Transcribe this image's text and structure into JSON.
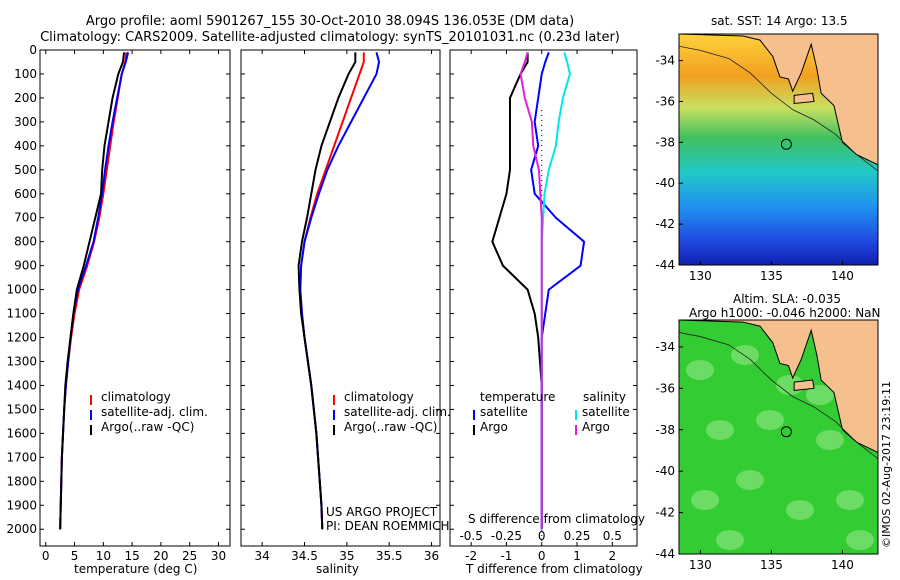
{
  "header": {
    "title1": "Argo profile: aoml 5901267_155 30-Oct-2010 38.094S 136.053E (DM data)",
    "title2": "Climatology: CARS2009. Satellite-adjusted climatology: synTS_20101031.nc (0.23d later)"
  },
  "colors": {
    "climatology": "#ff0000",
    "satellite": "#0000ff",
    "argo": "#000000",
    "sat_salinity": "#00e5ee",
    "argo_salinity": "#e020e0",
    "land": "#f5c08e"
  },
  "panels": {
    "temperature": {
      "xlabel": "temperature (deg C)",
      "legend": [
        "climatology",
        "satellite-adj. clim.",
        "Argo(..raw -QC)"
      ]
    },
    "salinity": {
      "xlabel": "salinity",
      "legend": [
        "climatology",
        "satellite-adj. clim.",
        "Argo(..raw -QC)"
      ],
      "note1": "US ARGO PROJECT",
      "note2": "PI: DEAN ROEMMICH"
    },
    "difference": {
      "xlabel": "T difference from climatology",
      "top_axis_label": "S difference from climatology",
      "legend_temp_title": "temperature",
      "legend_sal_title": "salinity",
      "legend_items": [
        "satellite",
        "Argo",
        "satellite",
        "Argo"
      ]
    },
    "map_sst": {
      "title": "sat. SST: 14 Argo: 13.5"
    },
    "map_sla": {
      "title1": "Altim. SLA: -0.035",
      "title2": "Argo h1000: -0.046 h2000: NaN"
    }
  },
  "watermark": "©IMOS 02-Aug-2017 23:19:11",
  "chart_data": [
    {
      "type": "line",
      "title": "",
      "xlabel": "temperature (deg C)",
      "ylabel": "",
      "xlim": [
        -1,
        32
      ],
      "ylim": [
        2070,
        0
      ],
      "xticks": [
        0,
        5,
        10,
        15,
        20,
        25,
        30
      ],
      "yticks": [
        0,
        100,
        200,
        300,
        400,
        500,
        600,
        700,
        800,
        900,
        1000,
        1100,
        1200,
        1300,
        1400,
        1500,
        1600,
        1700,
        1800,
        1900,
        2000
      ],
      "series": [
        {
          "name": "climatology",
          "x": [
            14,
            13.8,
            13.2,
            12.5,
            11.8,
            11.2,
            10.6,
            10,
            9.3,
            8.4,
            7.2,
            5.8,
            5,
            4.4,
            3.9,
            3.5,
            3.2,
            3,
            2.8,
            2.7,
            2.6,
            2.5
          ],
          "y": [
            10,
            50,
            100,
            200,
            300,
            400,
            500,
            600,
            700,
            800,
            900,
            1000,
            1100,
            1200,
            1300,
            1400,
            1500,
            1600,
            1700,
            1800,
            1900,
            2000
          ]
        },
        {
          "name": "satellite-adj. clim.",
          "x": [
            14.3,
            13.9,
            13.2,
            12.4,
            11.6,
            10.9,
            10.3,
            9.8,
            9.1,
            8.3,
            7,
            5.6,
            4.8,
            4.3,
            3.9,
            3.5,
            3.2,
            3,
            2.8,
            2.7,
            2.6,
            2.5
          ],
          "y": [
            10,
            50,
            100,
            200,
            300,
            400,
            500,
            600,
            700,
            800,
            900,
            1000,
            1100,
            1200,
            1300,
            1400,
            1500,
            1600,
            1700,
            1800,
            1900,
            2000
          ]
        },
        {
          "name": "Argo(..raw -QC)",
          "x": [
            13.6,
            13.4,
            12.6,
            11.6,
            10.9,
            10.2,
            9.8,
            9.6,
            8.6,
            7.6,
            6.6,
            5.4,
            4.8,
            4.3,
            3.8,
            3.4,
            3.2,
            3,
            2.8,
            2.7,
            2.6,
            2.5
          ],
          "y": [
            10,
            50,
            100,
            200,
            300,
            400,
            500,
            600,
            700,
            800,
            900,
            1000,
            1100,
            1200,
            1300,
            1400,
            1500,
            1600,
            1700,
            1800,
            1900,
            2000
          ]
        }
      ],
      "legend": "inside lower-center"
    },
    {
      "type": "line",
      "title": "",
      "xlabel": "salinity",
      "ylabel": "",
      "xlim": [
        33.75,
        36.1
      ],
      "ylim": [
        2070,
        0
      ],
      "xticks": [
        34,
        34.5,
        35,
        35.5,
        36
      ],
      "series": [
        {
          "name": "climatology",
          "x": [
            35.2,
            35.2,
            35.15,
            35.05,
            34.95,
            34.85,
            34.75,
            34.65,
            34.57,
            34.5,
            34.46,
            34.45,
            34.47,
            34.5,
            34.54,
            34.58,
            34.61,
            34.64,
            34.66,
            34.68,
            34.7,
            34.71
          ],
          "y": [
            10,
            50,
            100,
            200,
            300,
            400,
            500,
            600,
            700,
            800,
            900,
            1000,
            1100,
            1200,
            1300,
            1400,
            1500,
            1600,
            1700,
            1800,
            1900,
            2000
          ]
        },
        {
          "name": "satellite-adj. clim.",
          "x": [
            35.35,
            35.38,
            35.35,
            35.2,
            35.05,
            34.9,
            34.77,
            34.67,
            34.58,
            34.5,
            34.46,
            34.45,
            34.47,
            34.5,
            34.54,
            34.58,
            34.61,
            34.64,
            34.66,
            34.68,
            34.7,
            34.71
          ],
          "y": [
            10,
            50,
            100,
            200,
            300,
            400,
            500,
            600,
            700,
            800,
            900,
            1000,
            1100,
            1200,
            1300,
            1400,
            1500,
            1600,
            1700,
            1800,
            1900,
            2000
          ]
        },
        {
          "name": "Argo(..raw -QC)",
          "x": [
            35.1,
            35.1,
            35.02,
            34.9,
            34.8,
            34.7,
            34.63,
            34.58,
            34.53,
            34.47,
            34.43,
            34.44,
            34.46,
            34.5,
            34.54,
            34.58,
            34.61,
            34.64,
            34.66,
            34.68,
            34.7,
            34.71
          ],
          "y": [
            10,
            50,
            100,
            200,
            300,
            400,
            500,
            600,
            700,
            800,
            900,
            1000,
            1100,
            1200,
            1300,
            1400,
            1500,
            1600,
            1700,
            1800,
            1900,
            2000
          ]
        }
      ],
      "legend": "inside lower-center"
    },
    {
      "type": "line",
      "title": "",
      "xlabel": "T difference from climatology",
      "ylabel": "",
      "xlim": [
        -2.6,
        2.7
      ],
      "ylim": [
        2070,
        0
      ],
      "xticks": [
        -2,
        -1,
        0,
        1,
        2
      ],
      "top_xlabel": "S difference from climatology",
      "top_xticks": [
        -0.5,
        -0.25,
        0,
        0.25,
        0.5
      ],
      "series": [
        {
          "name": "temperature satellite",
          "x": [
            0.2,
            0.1,
            0,
            -0.1,
            -0.2,
            -0.1,
            -0.3,
            -0.2,
            0.4,
            1.2,
            1.1,
            0.2,
            0.1,
            0,
            0,
            0,
            0,
            0,
            0,
            0,
            0,
            0
          ],
          "y": [
            10,
            50,
            100,
            200,
            300,
            400,
            500,
            600,
            700,
            800,
            900,
            1000,
            1100,
            1200,
            1300,
            1400,
            1500,
            1600,
            1700,
            1800,
            1900,
            2000
          ]
        },
        {
          "name": "temperature Argo",
          "x": [
            -0.4,
            -0.4,
            -0.6,
            -0.9,
            -0.9,
            -0.9,
            -0.9,
            -1,
            -1.2,
            -1.4,
            -1.1,
            -0.4,
            -0.2,
            -0.1,
            -0.05,
            0,
            0,
            0,
            0,
            0,
            0,
            0
          ],
          "y": [
            10,
            50,
            100,
            200,
            300,
            400,
            500,
            600,
            700,
            800,
            900,
            1000,
            1100,
            1200,
            1300,
            1400,
            1500,
            1600,
            1700,
            1800,
            1900,
            2000
          ]
        },
        {
          "name": "salinity satellite",
          "x": [
            0.16,
            0.18,
            0.2,
            0.15,
            0.12,
            0.1,
            0.05,
            0.02,
            0.01,
            0,
            0,
            0,
            0,
            0,
            0,
            0,
            0,
            0,
            0,
            0,
            0,
            0
          ],
          "y": [
            10,
            50,
            100,
            200,
            300,
            400,
            500,
            600,
            700,
            800,
            900,
            1000,
            1100,
            1200,
            1300,
            1400,
            1500,
            1600,
            1700,
            1800,
            1900,
            2000
          ]
        },
        {
          "name": "salinity Argo",
          "x": [
            -0.1,
            -0.12,
            -0.15,
            -0.12,
            -0.07,
            -0.06,
            -0.02,
            -0.01,
            0,
            0,
            0,
            0,
            0,
            0,
            0,
            0,
            0,
            0,
            0,
            0,
            0,
            0
          ],
          "y": [
            10,
            50,
            100,
            200,
            300,
            400,
            500,
            600,
            700,
            800,
            900,
            1000,
            1100,
            1200,
            1300,
            1400,
            1500,
            1600,
            1700,
            1800,
            1900,
            2000
          ]
        }
      ],
      "legend": "inside lower"
    },
    {
      "type": "heatmap",
      "title": "sat. SST: 14 Argo: 13.5",
      "xlim": [
        128.5,
        142.5
      ],
      "ylim": [
        -44,
        -32.7
      ],
      "xticks": [
        130,
        135,
        140
      ],
      "yticks": [
        -34,
        -36,
        -38,
        -40,
        -42,
        -44
      ],
      "marker": {
        "lon": 136.053,
        "lat": -38.094
      }
    },
    {
      "type": "heatmap",
      "title": "Altim. SLA: -0.035",
      "subtitle": "Argo h1000: -0.046 h2000: NaN",
      "xlim": [
        128.5,
        142.5
      ],
      "ylim": [
        -44,
        -32.7
      ],
      "xticks": [
        130,
        135,
        140
      ],
      "yticks": [
        -34,
        -36,
        -38,
        -40,
        -42,
        -44
      ],
      "marker": {
        "lon": 136.053,
        "lat": -38.094
      }
    }
  ]
}
